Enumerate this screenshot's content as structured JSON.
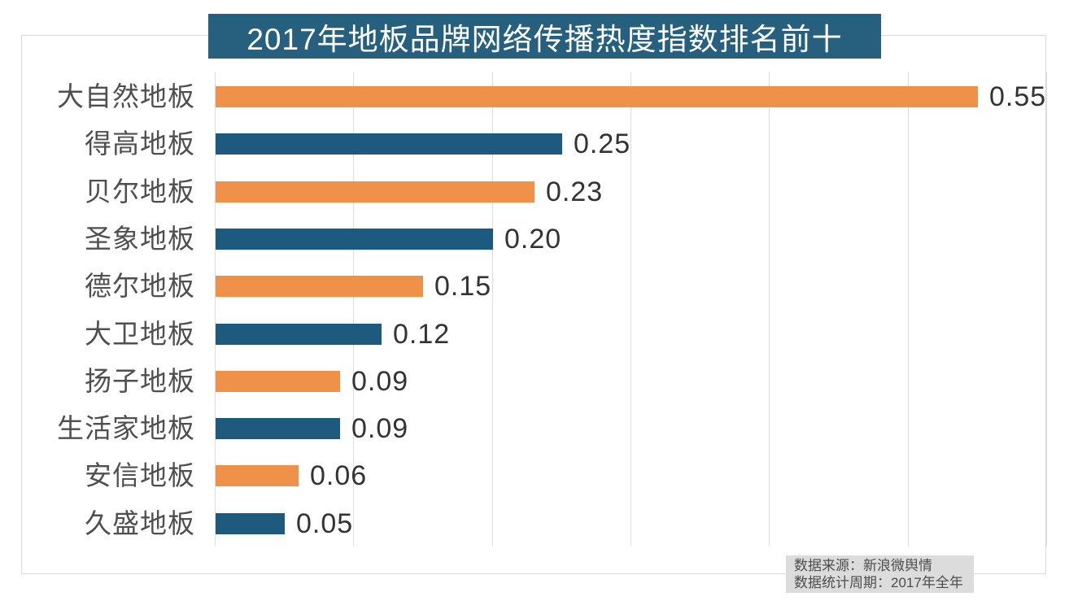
{
  "title": "2017年地板品牌网络传播热度指数排名前十",
  "source_box": {
    "line1": "数据来源：新浪微舆情",
    "line2": "数据统计周期：2017年全年"
  },
  "colors": {
    "title_bg": "#27607E",
    "bar_orange": "#F0914A",
    "bar_blue": "#1E5A7D",
    "grid": "#DCDCDC",
    "category_text": "#4F4F4F",
    "value_text": "#333333",
    "source_bg": "#DCDCDC",
    "source_text": "#4D4D4D"
  },
  "chart_data": {
    "type": "bar",
    "orientation": "horizontal",
    "title": "2017年地板品牌网络传播热度指数排名前十",
    "categories": [
      "大自然地板",
      "得高地板",
      "贝尔地板",
      "圣象地板",
      "德尔地板",
      "大卫地板",
      "扬子地板",
      "生活家地板",
      "安信地板",
      "久盛地板"
    ],
    "values": [
      0.55,
      0.25,
      0.23,
      0.2,
      0.15,
      0.12,
      0.09,
      0.09,
      0.06,
      0.05
    ],
    "value_labels": [
      "0.55",
      "0.25",
      "0.23",
      "0.20",
      "0.15",
      "0.12",
      "0.09",
      "0.09",
      "0.06",
      "0.05"
    ],
    "xlabel": "",
    "ylabel": "",
    "xlim": [
      0,
      0.6
    ],
    "gridline_interval": 0.1,
    "grid": "vertical-on",
    "legend": "none",
    "bar_color_pattern": [
      "#F0914A",
      "#1E5A7D"
    ],
    "annotations": [
      "数据来源：新浪微舆情",
      "数据统计周期：2017年全年"
    ]
  }
}
